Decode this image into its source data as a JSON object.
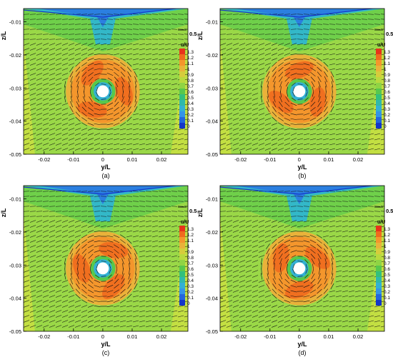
{
  "figure": {
    "panels": [
      {
        "label": "(a)"
      },
      {
        "label": "(b)"
      },
      {
        "label": "(c)"
      },
      {
        "label": "(d)"
      }
    ]
  },
  "chart_data": [
    {
      "type": "heatmap",
      "panel_label": "(a)",
      "xlabel": "y/L",
      "ylabel": "z/L",
      "xlim": [
        -0.027,
        0.029
      ],
      "ylim": [
        -0.05,
        -0.006
      ],
      "x_ticks": [
        -0.02,
        -0.01,
        0,
        0.01,
        0.02
      ],
      "x_tick_labels": [
        "-0.02",
        "-0.01",
        "0",
        "0.01",
        "0.02"
      ],
      "y_ticks": [
        -0.05,
        -0.04,
        -0.03,
        -0.02,
        -0.01
      ],
      "y_tick_labels": [
        "-0.05",
        "-0.04",
        "-0.03",
        "-0.02",
        "-0.01"
      ],
      "legend_title": "u/U",
      "legend_levels": [
        "1.3",
        "1.2",
        "1.1",
        "1",
        "0.9",
        "0.8",
        "0.7",
        "0.6",
        "0.5",
        "0.4",
        "0.3",
        "0.2",
        "0.1",
        "0"
      ],
      "vector_reference_label": "0.5",
      "propeller_hub_center": [
        0.0,
        -0.031
      ],
      "wake_disk_radius": 0.012,
      "swirl_arms_rotation_deg": 0
    },
    {
      "type": "heatmap",
      "panel_label": "(b)",
      "xlabel": "y/L",
      "ylabel": "z/L",
      "xlim": [
        -0.027,
        0.029
      ],
      "ylim": [
        -0.05,
        -0.006
      ],
      "x_ticks": [
        -0.02,
        -0.01,
        0,
        0.01,
        0.02
      ],
      "x_tick_labels": [
        "-0.02",
        "-0.01",
        "0",
        "0.01",
        "0.02"
      ],
      "y_ticks": [
        -0.05,
        -0.04,
        -0.03,
        -0.02,
        -0.01
      ],
      "y_tick_labels": [
        "-0.05",
        "-0.04",
        "-0.03",
        "-0.02",
        "-0.01"
      ],
      "legend_title": "u/U",
      "legend_levels": [
        "1.3",
        "1.2",
        "1.1",
        "1",
        "0.9",
        "0.8",
        "0.7",
        "0.6",
        "0.5",
        "0.4",
        "0.3",
        "0.2",
        "0.1",
        "0"
      ],
      "vector_reference_label": "0.5",
      "propeller_hub_center": [
        0.0,
        -0.031
      ],
      "wake_disk_radius": 0.012,
      "swirl_arms_rotation_deg": 30
    },
    {
      "type": "heatmap",
      "panel_label": "(c)",
      "xlabel": "y/L",
      "ylabel": "z/L",
      "xlim": [
        -0.027,
        0.029
      ],
      "ylim": [
        -0.05,
        -0.006
      ],
      "x_ticks": [
        -0.02,
        -0.01,
        0,
        0.01,
        0.02
      ],
      "x_tick_labels": [
        "-0.02",
        "-0.01",
        "0",
        "0.01",
        "0.02"
      ],
      "y_ticks": [
        -0.05,
        -0.04,
        -0.03,
        -0.02,
        -0.01
      ],
      "y_tick_labels": [
        "-0.05",
        "-0.04",
        "-0.03",
        "-0.02",
        "-0.01"
      ],
      "legend_title": "u/U",
      "legend_levels": [
        "1.3",
        "1.2",
        "1.1",
        "1",
        "0.9",
        "0.8",
        "0.7",
        "0.6",
        "0.5",
        "0.4",
        "0.3",
        "0.2",
        "0.1",
        "0"
      ],
      "vector_reference_label": "0.5",
      "propeller_hub_center": [
        0.0,
        -0.031
      ],
      "wake_disk_radius": 0.012,
      "swirl_arms_rotation_deg": 60
    },
    {
      "type": "heatmap",
      "panel_label": "(d)",
      "xlabel": "y/L",
      "ylabel": "z/L",
      "xlim": [
        -0.027,
        0.029
      ],
      "ylim": [
        -0.05,
        -0.006
      ],
      "x_ticks": [
        -0.02,
        -0.01,
        0,
        0.01,
        0.02
      ],
      "x_tick_labels": [
        "-0.02",
        "-0.01",
        "0",
        "0.01",
        "0.02"
      ],
      "y_ticks": [
        -0.05,
        -0.04,
        -0.03,
        -0.02,
        -0.01
      ],
      "y_tick_labels": [
        "-0.05",
        "-0.04",
        "-0.03",
        "-0.02",
        "-0.01"
      ],
      "legend_title": "u/U",
      "legend_levels": [
        "1.3",
        "1.2",
        "1.1",
        "1",
        "0.9",
        "0.8",
        "0.7",
        "0.6",
        "0.5",
        "0.4",
        "0.3",
        "0.2",
        "0.1",
        "0"
      ],
      "vector_reference_label": "0.5",
      "propeller_hub_center": [
        0.0,
        -0.031
      ],
      "wake_disk_radius": 0.012,
      "swirl_arms_rotation_deg": 90
    }
  ],
  "colors": {
    "legend_scale": [
      "#e8331a",
      "#f06a1e",
      "#f4962c",
      "#e9b23a",
      "#d6cc3c",
      "#b9d93e",
      "#8fd444",
      "#57c84d",
      "#33c07c",
      "#2fb9ab",
      "#33b0d4",
      "#3494e6",
      "#2366dd",
      "#1436c9"
    ],
    "background_field": "#9ad847",
    "outer_field": "#c3df42",
    "vector": "#111111"
  }
}
